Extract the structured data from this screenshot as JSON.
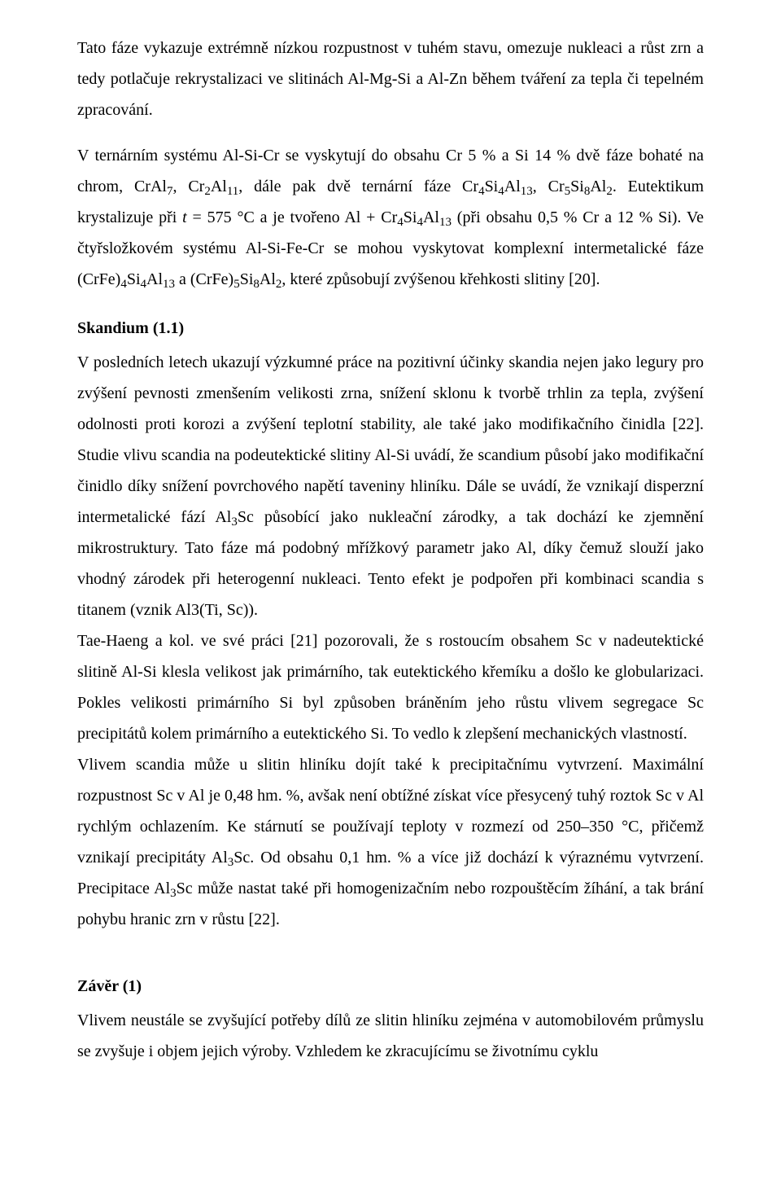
{
  "paragraphs": {
    "p1": "Tato fáze vykazuje extrémně nízkou rozpustnost v tuhém stavu, omezuje nukleaci a růst zrn a tedy potlačuje rekrystalizaci ve slitinách Al-Mg-Si a Al-Zn během tváření za tepla či tepelném zpracování.",
    "p2_html": "V ternárním systému Al-Si-Cr se vyskytují do obsahu Cr 5 % a Si 14 % dvě fáze bohaté na chrom, CrAl<sub>7</sub>, Cr<sub>2</sub>Al<sub>11</sub>, dále pak dvě ternární fáze Cr<sub>4</sub>Si<sub>4</sub>Al<sub>13</sub>, Cr<sub>5</sub>Si<sub>8</sub>Al<sub>2</sub>. Eutektikum krystalizuje při <span class=\"italic\">t</span> = 575 °C a je tvořeno Al + Cr<sub>4</sub>Si<sub>4</sub>Al<sub>13</sub> (při obsahu 0,5 % Cr a 12 % Si). Ve čtyřsložkovém systému Al-Si-Fe-Cr se mohou vyskytovat komplexní intermetalické fáze (CrFe)<sub>4</sub>Si<sub>4</sub>Al<sub>13</sub> a (CrFe)<sub>5</sub>Si<sub>8</sub>Al<sub>2</sub>, které způsobují zvýšenou křehkosti slitiny [20].",
    "h_skandium": "Skandium (1.1)",
    "p3_html": "V posledních letech ukazují výzkumné práce na pozitivní účinky skandia nejen jako legury pro zvýšení pevnosti zmenšením velikosti zrna, snížení sklonu k tvorbě trhlin za tepla, zvýšení odolnosti proti korozi a zvýšení teplotní stability, ale také jako modifikačního činidla [22]. Studie vlivu scandia na podeutektické slitiny Al-Si uvádí, že scandium působí jako modifikační činidlo díky snížení povrchového napětí taveniny hliníku. Dále se uvádí, že vznikají disperzní intermetalické fází Al<sub>3</sub>Sc působící jako nukleační zárodky, a tak dochází ke zjemnění mikrostruktury. Tato fáze má podobný mřížkový parametr jako Al, díky čemuž slouží jako vhodný zárodek při heterogenní nukleaci. Tento efekt je podpořen při kombinaci scandia s titanem (vznik Al3(Ti, Sc)).",
    "p4": "Tae-Haeng a kol. ve své práci [21] pozorovali, že s rostoucím obsahem Sc v nadeutektické slitině Al-Si klesla velikost jak primárního, tak eutektického křemíku a došlo ke globularizaci. Pokles velikosti primárního Si byl způsoben bráněním jeho růstu vlivem segregace Sc precipitátů kolem primárního a eutektického Si. To vedlo k zlepšení mechanických vlastností.",
    "p5_html": "Vlivem scandia může u slitin hliníku dojít také k precipitačnímu vytvrzení. Maximální rozpustnost Sc v Al je 0,48 hm. %, avšak není obtížné získat více přesycený tuhý roztok Sc v Al rychlým ochlazením. Ke stárnutí se používají teploty v rozmezí od 250–350 °C, přičemž vznikají precipitáty Al<sub>3</sub>Sc. Od obsahu 0,1 hm. % a více již dochází k výraznému vytvrzení. Precipitace Al<sub>3</sub>Sc může nastat také při homogenizačním nebo rozpouštěcím žíhání, a tak brání pohybu hranic zrn v růstu [22].",
    "h_zaver": "Závěr (1)",
    "p6": "Vlivem neustále se zvyšující potřeby dílů ze slitin hliníku zejména v automobilovém průmyslu se zvyšuje i objem jejich výroby. Vzhledem ke zkracujícímu se životnímu cyklu"
  }
}
